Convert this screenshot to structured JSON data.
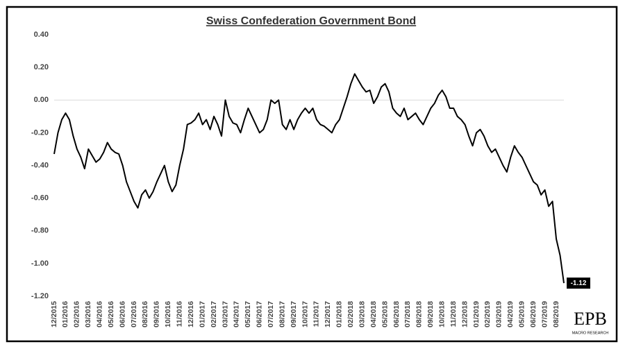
{
  "chart_data": {
    "type": "line",
    "title": "Swiss Confederation Government Bond",
    "categories": [
      "12/2015",
      null,
      null,
      "01/2016",
      null,
      null,
      "02/2016",
      null,
      null,
      "03/2016",
      null,
      null,
      "04/2016",
      null,
      null,
      "05/2016",
      null,
      null,
      "06/2016",
      null,
      null,
      "07/2016",
      null,
      null,
      "08/2016",
      null,
      null,
      "09/2016",
      null,
      null,
      "10/2016",
      null,
      null,
      "11/2016",
      null,
      null,
      "12/2016",
      null,
      null,
      "01/2017",
      null,
      null,
      "02/2017",
      null,
      null,
      "03/2017",
      null,
      null,
      "04/2017",
      null,
      null,
      "05/2017",
      null,
      null,
      "06/2017",
      null,
      null,
      "07/2017",
      null,
      null,
      "08/2017",
      null,
      null,
      "09/2017",
      null,
      null,
      "10/2017",
      null,
      null,
      "11/2017",
      null,
      null,
      "12/2017",
      null,
      null,
      "01/2018",
      null,
      null,
      "02/2018",
      null,
      null,
      "03/2018",
      null,
      null,
      "04/2018",
      null,
      null,
      "05/2018",
      null,
      null,
      "06/2018",
      null,
      null,
      "07/2018",
      null,
      null,
      "08/2018",
      null,
      null,
      "09/2018",
      null,
      null,
      "10/2018",
      null,
      null,
      "11/2018",
      null,
      null,
      "12/2018",
      null,
      null,
      "01/2019",
      null,
      null,
      "02/2019",
      null,
      null,
      "03/2019",
      null,
      null,
      "04/2019",
      null,
      null,
      "05/2019",
      null,
      null,
      "06/2019",
      null,
      null,
      "07/2019",
      null,
      null,
      "08/2019",
      null,
      null
    ],
    "series": [
      {
        "color": "#000000",
        "values": [
          -0.33,
          -0.2,
          -0.12,
          -0.08,
          -0.12,
          -0.22,
          -0.3,
          -0.35,
          -0.42,
          -0.3,
          -0.34,
          -0.38,
          -0.36,
          -0.32,
          -0.26,
          -0.3,
          -0.32,
          -0.33,
          -0.4,
          -0.5,
          -0.56,
          -0.62,
          -0.66,
          -0.58,
          -0.55,
          -0.6,
          -0.56,
          -0.5,
          -0.45,
          -0.4,
          -0.5,
          -0.56,
          -0.52,
          -0.4,
          -0.3,
          -0.15,
          -0.14,
          -0.12,
          -0.08,
          -0.15,
          -0.12,
          -0.18,
          -0.1,
          -0.15,
          -0.22,
          0.0,
          -0.1,
          -0.14,
          -0.15,
          -0.2,
          -0.12,
          -0.05,
          -0.1,
          -0.15,
          -0.2,
          -0.18,
          -0.12,
          0.0,
          -0.02,
          0.0,
          -0.15,
          -0.18,
          -0.12,
          -0.18,
          -0.12,
          -0.08,
          -0.05,
          -0.08,
          -0.05,
          -0.12,
          -0.15,
          -0.16,
          -0.18,
          -0.2,
          -0.15,
          -0.12,
          -0.05,
          0.02,
          0.1,
          0.16,
          0.12,
          0.08,
          0.05,
          0.06,
          -0.02,
          0.02,
          0.08,
          0.1,
          0.05,
          -0.05,
          -0.08,
          -0.1,
          -0.05,
          -0.12,
          -0.1,
          -0.08,
          -0.12,
          -0.15,
          -0.1,
          -0.05,
          -0.02,
          0.03,
          0.06,
          0.02,
          -0.05,
          -0.05,
          -0.1,
          -0.12,
          -0.15,
          -0.22,
          -0.28,
          -0.2,
          -0.18,
          -0.22,
          -0.28,
          -0.32,
          -0.3,
          -0.35,
          -0.4,
          -0.44,
          -0.35,
          -0.28,
          -0.32,
          -0.35,
          -0.4,
          -0.45,
          -0.5,
          -0.52,
          -0.58,
          -0.55,
          -0.65,
          -0.62,
          -0.85,
          -0.95,
          -1.12
        ]
      }
    ],
    "ylim": [
      -1.2,
      0.4
    ],
    "yticks": [
      {
        "value": -1.2,
        "label": "-1.20"
      },
      {
        "value": -1.0,
        "label": "-1.00"
      },
      {
        "value": -0.8,
        "label": "-0.80"
      },
      {
        "value": -0.6,
        "label": "-0.60"
      },
      {
        "value": -0.4,
        "label": "-0.40"
      },
      {
        "value": -0.2,
        "label": "-0.20"
      },
      {
        "value": 0,
        "label": "0.00"
      },
      {
        "value": 0.2,
        "label": "0.20"
      },
      {
        "value": 0.4,
        "label": "0.40"
      }
    ],
    "zero_line": true
  },
  "logo": {
    "title": "EPB",
    "subtitle": "MACRO RESEARCH"
  }
}
